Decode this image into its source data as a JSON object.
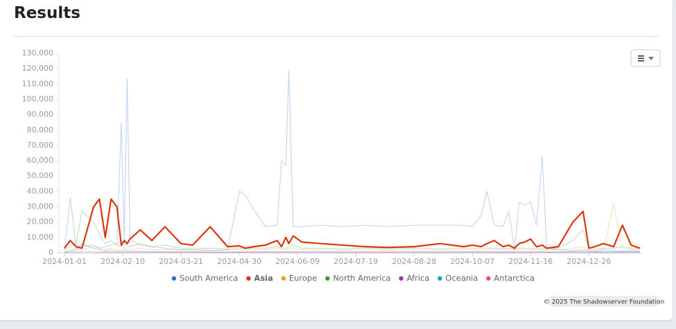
{
  "header": {
    "title": "Results"
  },
  "chart_data": {
    "type": "line",
    "x": [
      "2024-01-01",
      "2024-01-05",
      "2024-01-09",
      "2024-01-13",
      "2024-01-21",
      "2024-01-25",
      "2024-01-29",
      "2024-02-02",
      "2024-02-06",
      "2024-02-09",
      "2024-02-11",
      "2024-02-13",
      "2024-02-15",
      "2024-02-22",
      "2024-03-01",
      "2024-03-10",
      "2024-03-21",
      "2024-03-29",
      "2024-04-10",
      "2024-04-22",
      "2024-04-30",
      "2024-05-04",
      "2024-05-10",
      "2024-05-18",
      "2024-05-26",
      "2024-05-29",
      "2024-06-01",
      "2024-06-03",
      "2024-06-06",
      "2024-06-12",
      "2024-06-25",
      "2024-07-10",
      "2024-07-25",
      "2024-08-10",
      "2024-08-28",
      "2024-09-15",
      "2024-10-01",
      "2024-10-07",
      "2024-10-13",
      "2024-10-17",
      "2024-10-22",
      "2024-10-28",
      "2024-11-01",
      "2024-11-05",
      "2024-11-08",
      "2024-11-12",
      "2024-11-16",
      "2024-11-20",
      "2024-11-24",
      "2024-11-27",
      "2024-12-05",
      "2024-12-15",
      "2024-12-22",
      "2024-12-26",
      "2024-12-30",
      "2025-01-05",
      "2025-01-12",
      "2025-01-18",
      "2025-01-24",
      "2025-01-30"
    ],
    "xlim": [
      "2024-01-01",
      "2025-01-31"
    ],
    "xticks": [
      "2024-01-01",
      "2024-02-10",
      "2024-03-21",
      "2024-04-30",
      "2024-06-09",
      "2024-07-19",
      "2024-08-28",
      "2024-10-07",
      "2024-11-16",
      "2024-12-26"
    ],
    "ylim": [
      0,
      130000
    ],
    "yticks": [
      0,
      {
        "value": 10000,
        "label": "10,000"
      },
      {
        "value": 20000,
        "label": "20,000"
      },
      {
        "value": 30000,
        "label": "30,000"
      },
      {
        "value": 40000,
        "label": "40,000"
      },
      {
        "value": 50000,
        "label": "50,000"
      },
      {
        "value": 60000,
        "label": "60,000"
      },
      {
        "value": 70000,
        "label": "70,000"
      },
      {
        "value": 80000,
        "label": "80,000"
      },
      {
        "value": 90000,
        "label": "90,000"
      },
      {
        "value": 100000,
        "label": "100,000"
      },
      {
        "value": 110000,
        "label": "110,000"
      },
      {
        "value": 120000,
        "label": "120,000"
      },
      {
        "value": 130000,
        "label": "130,000"
      }
    ],
    "grid": false,
    "series": [
      {
        "name": "South America",
        "color": "#2f6fd6",
        "opacity": 0.3,
        "values": [
          2000,
          36000,
          3000,
          4000,
          5000,
          3000,
          4000,
          5000,
          6000,
          85000,
          8000,
          114000,
          9000,
          5000,
          4000,
          3000,
          2000,
          2000,
          1500,
          2000,
          40000,
          38000,
          28000,
          17000,
          18000,
          60000,
          57000,
          119000,
          17000,
          17000,
          18000,
          17000,
          18000,
          17000,
          18000,
          18000,
          18000,
          17000,
          24000,
          40000,
          18000,
          17000,
          27000,
          2000,
          33000,
          31000,
          33000,
          18000,
          63000,
          3000,
          2000,
          1500,
          2000,
          1500,
          1000,
          2000,
          1500,
          1000,
          1500,
          1000
        ]
      },
      {
        "name": "Asia",
        "color": "#d9360b",
        "opacity": 1,
        "values": [
          3000,
          8000,
          4000,
          3000,
          30000,
          35000,
          10000,
          35000,
          30000,
          5000,
          8000,
          6000,
          9000,
          15000,
          8000,
          17000,
          6000,
          5000,
          17000,
          4000,
          4500,
          3000,
          4000,
          5000,
          8000,
          4000,
          10000,
          6000,
          11000,
          7000,
          6000,
          5000,
          4000,
          3500,
          4000,
          6000,
          4000,
          5000,
          4000,
          6000,
          8000,
          4000,
          5000,
          3000,
          6000,
          7000,
          9000,
          4000,
          5000,
          3000,
          4000,
          20000,
          27000,
          3000,
          4000,
          6000,
          4000,
          18000,
          5000,
          3000
        ]
      },
      {
        "name": "Europe",
        "color": "#f39c12",
        "opacity": 0.3,
        "values": [
          1000,
          2000,
          3000,
          2000,
          4000,
          3000,
          2000,
          3000,
          2000,
          2000,
          3000,
          2000,
          2000,
          3000,
          2000,
          2000,
          1500,
          2000,
          1500,
          2000,
          2000,
          1500,
          2000,
          2000,
          3000,
          2000,
          2000,
          2500,
          3000,
          2000,
          2000,
          1500,
          2000,
          1500,
          2000,
          1500,
          2000,
          2000,
          1500,
          2000,
          2000,
          1500,
          2000,
          1500,
          2000,
          2000,
          1500,
          2000,
          2000,
          1500,
          2000,
          3000,
          4000,
          2000,
          1500,
          2000,
          32000,
          3000,
          2000,
          1500
        ]
      },
      {
        "name": "North America",
        "color": "#2a9d2a",
        "opacity": 0.3,
        "values": [
          2000,
          4000,
          6000,
          27000,
          20000,
          12000,
          6000,
          8000,
          5000,
          4000,
          6000,
          5000,
          4000,
          6000,
          4000,
          5000,
          3000,
          3000,
          3000,
          2500,
          3000,
          2500,
          3000,
          3000,
          4000,
          3000,
          3000,
          4000,
          5000,
          3000,
          3000,
          2500,
          3000,
          2500,
          3000,
          2500,
          3000,
          3000,
          2500,
          3000,
          3000,
          2500,
          3000,
          2500,
          3000,
          3000,
          2500,
          3000,
          3000,
          2500,
          3000,
          8000,
          15000,
          3000,
          2500,
          3000,
          3000,
          4000,
          3000,
          2500
        ]
      },
      {
        "name": "Africa",
        "color": "#9b30c9",
        "opacity": 0.3,
        "values": [
          500,
          1000,
          2000,
          6000,
          3000,
          2000,
          1000,
          1500,
          1000,
          1000,
          1500,
          1000,
          1000,
          1000,
          800,
          800,
          600,
          700,
          600,
          600,
          700,
          600,
          700,
          700,
          800,
          700,
          700,
          800,
          900,
          700,
          700,
          600,
          700,
          600,
          700,
          600,
          700,
          700,
          600,
          700,
          700,
          600,
          700,
          600,
          700,
          700,
          600,
          700,
          700,
          600,
          700,
          900,
          1000,
          700,
          600,
          700,
          700,
          800,
          700,
          600
        ]
      },
      {
        "name": "Oceania",
        "color": "#1f9bd6",
        "opacity": 0.3,
        "values": [
          300,
          500,
          800,
          1000,
          800,
          600,
          500,
          600,
          500,
          500,
          600,
          500,
          500,
          500,
          400,
          400,
          300,
          400,
          300,
          300,
          400,
          300,
          400,
          400,
          500,
          400,
          400,
          500,
          500,
          400,
          400,
          300,
          400,
          300,
          400,
          300,
          400,
          400,
          300,
          400,
          400,
          300,
          400,
          300,
          400,
          400,
          300,
          400,
          400,
          300,
          400,
          500,
          600,
          400,
          300,
          400,
          400,
          500,
          400,
          300
        ]
      },
      {
        "name": "Antarctica",
        "color": "#e8507a",
        "opacity": 0.3,
        "values": [
          0,
          0,
          100,
          0,
          0,
          100,
          0,
          0,
          0,
          100,
          0,
          0,
          0,
          0,
          0,
          100,
          0,
          0,
          0,
          0,
          0,
          0,
          100,
          0,
          0,
          0,
          0,
          0,
          0,
          0,
          0,
          0,
          100,
          0,
          0,
          0,
          0,
          0,
          0,
          0,
          100,
          0,
          0,
          0,
          0,
          0,
          0,
          0,
          0,
          0,
          0,
          100,
          0,
          0,
          0,
          0,
          0,
          0,
          0,
          0
        ]
      }
    ],
    "credits": "© 2025 The Shadowserver Foundation"
  }
}
